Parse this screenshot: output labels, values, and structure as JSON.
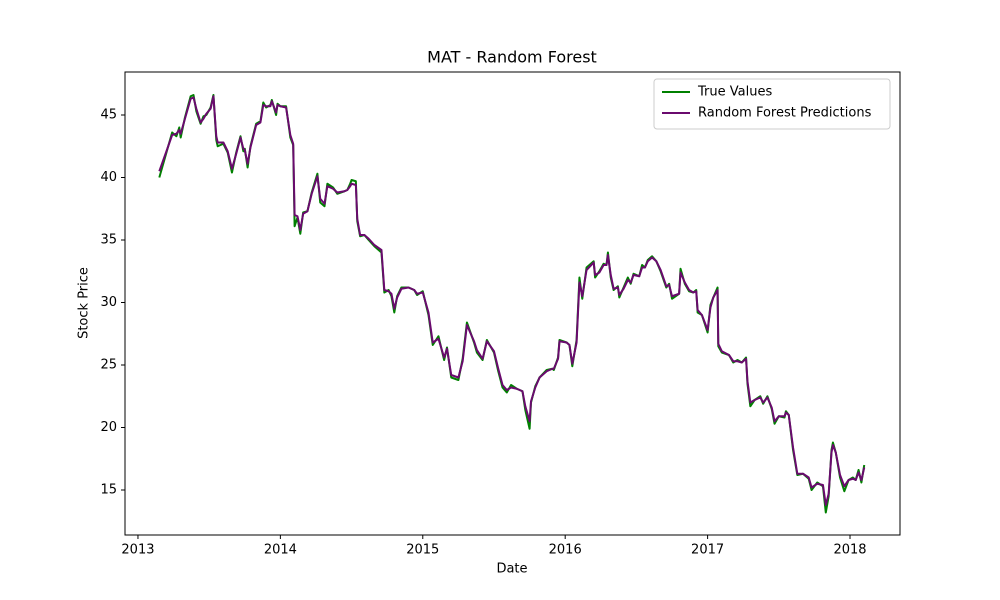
{
  "chart_data": {
    "type": "line",
    "title": "MAT - Random Forest",
    "xlabel": "Date",
    "ylabel": "Stock Price",
    "x": [
      2013.15,
      2013.2,
      2013.24,
      2013.27,
      2013.29,
      2013.3,
      2013.33,
      2013.37,
      2013.39,
      2013.41,
      2013.44,
      2013.46,
      2013.48,
      2013.51,
      2013.53,
      2013.55,
      2013.56,
      2013.6,
      2013.63,
      2013.66,
      2013.69,
      2013.72,
      2013.74,
      2013.75,
      2013.77,
      2013.79,
      2013.83,
      2013.86,
      2013.88,
      2013.9,
      2013.93,
      2013.94,
      2013.97,
      2013.98,
      2014.0,
      2014.04,
      2014.07,
      2014.09,
      2014.1,
      2014.12,
      2014.14,
      2014.16,
      2014.19,
      2014.22,
      2014.26,
      2014.28,
      2014.31,
      2014.33,
      2014.37,
      2014.4,
      2014.45,
      2014.47,
      2014.49,
      2014.5,
      2014.53,
      2014.54,
      2014.56,
      2014.59,
      2014.62,
      2014.66,
      2014.71,
      2014.73,
      2014.76,
      2014.78,
      2014.8,
      2014.82,
      2014.85,
      2014.9,
      2014.94,
      2014.96,
      2015.0,
      2015.04,
      2015.07,
      2015.11,
      2015.15,
      2015.17,
      2015.2,
      2015.25,
      2015.28,
      2015.31,
      2015.36,
      2015.38,
      2015.42,
      2015.45,
      2015.5,
      2015.53,
      2015.56,
      2015.59,
      2015.62,
      2015.66,
      2015.7,
      2015.72,
      2015.75,
      2015.76,
      2015.79,
      2015.82,
      2015.87,
      2015.91,
      2015.92,
      2015.95,
      2015.96,
      2016.01,
      2016.03,
      2016.05,
      2016.08,
      2016.1,
      2016.12,
      2016.15,
      2016.2,
      2016.21,
      2016.24,
      2016.27,
      2016.29,
      2016.3,
      2016.32,
      2016.34,
      2016.37,
      2016.38,
      2016.41,
      2016.44,
      2016.46,
      2016.48,
      2016.52,
      2016.54,
      2016.56,
      2016.58,
      2016.61,
      2016.64,
      2016.67,
      2016.71,
      2016.73,
      2016.75,
      2016.8,
      2016.81,
      2016.84,
      2016.87,
      2016.9,
      2016.92,
      2016.93,
      2016.96,
      2017.0,
      2017.02,
      2017.04,
      2017.07,
      2017.075,
      2017.1,
      2017.15,
      2017.18,
      2017.21,
      2017.24,
      2017.27,
      2017.28,
      2017.3,
      2017.33,
      2017.37,
      2017.39,
      2017.42,
      2017.45,
      2017.47,
      2017.5,
      2017.54,
      2017.55,
      2017.57,
      2017.6,
      2017.63,
      2017.67,
      2017.71,
      2017.73,
      2017.77,
      2017.81,
      2017.83,
      2017.85,
      2017.87,
      2017.88,
      2017.9,
      2017.93,
      2017.96,
      2017.99,
      2018.02,
      2018.04,
      2018.06,
      2018.08,
      2018.1
    ],
    "series": [
      {
        "name": "True Values",
        "color": "green",
        "values": [
          40.0,
          42.0,
          43.6,
          43.3,
          44.0,
          43.2,
          44.8,
          46.5,
          46.6,
          45.3,
          44.3,
          44.9,
          45.0,
          45.6,
          46.6,
          43.0,
          42.5,
          42.7,
          42.0,
          40.4,
          42.0,
          43.3,
          42.1,
          42.3,
          40.8,
          42.5,
          44.3,
          44.5,
          46.0,
          45.6,
          45.8,
          46.2,
          45.0,
          45.9,
          45.7,
          45.7,
          43.2,
          42.6,
          36.1,
          36.8,
          35.5,
          37.2,
          37.3,
          38.8,
          40.3,
          38.0,
          37.7,
          39.5,
          39.2,
          38.7,
          38.9,
          39.0,
          39.5,
          39.8,
          39.7,
          36.5,
          35.3,
          35.4,
          35.0,
          34.5,
          34.0,
          30.8,
          31.0,
          30.5,
          29.2,
          30.5,
          31.2,
          31.2,
          31.0,
          30.6,
          30.9,
          29.0,
          26.6,
          27.3,
          25.4,
          26.4,
          24.0,
          23.8,
          25.5,
          28.4,
          26.8,
          26.0,
          25.4,
          27.0,
          26.0,
          24.5,
          23.2,
          22.8,
          23.4,
          23.1,
          22.9,
          21.4,
          19.9,
          22.0,
          23.3,
          24.0,
          24.6,
          24.7,
          24.6,
          25.6,
          27.0,
          26.8,
          26.6,
          24.9,
          27.0,
          32.0,
          30.3,
          32.8,
          33.3,
          32.0,
          32.5,
          33.1,
          33.0,
          34.0,
          32.0,
          31.0,
          31.3,
          30.4,
          31.2,
          32.0,
          31.5,
          32.3,
          32.1,
          33.0,
          32.8,
          33.4,
          33.7,
          33.3,
          32.5,
          31.2,
          31.5,
          30.3,
          30.7,
          32.7,
          31.5,
          30.9,
          30.8,
          31.0,
          29.2,
          29.0,
          27.6,
          29.8,
          30.4,
          31.2,
          26.5,
          26.0,
          25.8,
          25.2,
          25.4,
          25.2,
          25.6,
          23.5,
          21.7,
          22.2,
          22.5,
          21.9,
          22.5,
          21.5,
          20.3,
          20.9,
          20.8,
          21.3,
          21.0,
          18.2,
          16.2,
          16.3,
          15.9,
          15.0,
          15.6,
          15.3,
          13.2,
          14.5,
          18.2,
          18.8,
          18.0,
          16.0,
          14.9,
          15.8,
          16.0,
          15.8,
          16.6,
          15.6,
          17.0
        ]
      },
      {
        "name": "Random Forest Predictions",
        "color": "#6a0a6e",
        "values": [
          40.5,
          42.1,
          43.4,
          43.5,
          43.8,
          43.5,
          44.7,
          46.3,
          46.4,
          45.5,
          44.4,
          44.7,
          45.1,
          45.5,
          46.5,
          43.3,
          42.8,
          42.8,
          42.1,
          40.7,
          41.9,
          43.2,
          42.3,
          42.2,
          41.1,
          42.4,
          44.2,
          44.4,
          45.8,
          45.7,
          45.7,
          46.1,
          45.2,
          45.8,
          45.7,
          45.6,
          43.4,
          42.7,
          37.0,
          36.9,
          35.8,
          37.1,
          37.3,
          38.7,
          40.1,
          38.3,
          37.9,
          39.3,
          39.1,
          38.8,
          38.9,
          39.0,
          39.3,
          39.5,
          39.4,
          36.7,
          35.4,
          35.4,
          35.1,
          34.6,
          34.2,
          31.0,
          30.9,
          30.7,
          29.5,
          30.4,
          31.1,
          31.2,
          31.0,
          30.7,
          30.8,
          29.2,
          26.8,
          27.1,
          25.6,
          26.3,
          24.2,
          24.0,
          25.3,
          28.2,
          26.9,
          26.2,
          25.5,
          26.9,
          26.1,
          24.7,
          23.4,
          23.0,
          23.2,
          23.1,
          22.9,
          21.7,
          20.5,
          22.1,
          23.2,
          24.0,
          24.5,
          24.7,
          24.7,
          25.5,
          26.9,
          26.8,
          26.6,
          25.1,
          26.8,
          31.6,
          30.5,
          32.6,
          33.2,
          32.2,
          32.4,
          33.0,
          33.0,
          33.8,
          32.2,
          31.1,
          31.2,
          30.6,
          31.1,
          31.8,
          31.6,
          32.2,
          32.1,
          32.8,
          32.8,
          33.3,
          33.6,
          33.3,
          32.6,
          31.3,
          31.4,
          30.5,
          30.7,
          32.4,
          31.6,
          31.0,
          30.8,
          30.9,
          29.4,
          29.0,
          27.8,
          29.6,
          30.4,
          31.0,
          26.7,
          26.1,
          25.8,
          25.3,
          25.3,
          25.2,
          25.5,
          23.7,
          22.0,
          22.2,
          22.4,
          22.0,
          22.4,
          21.6,
          20.5,
          20.9,
          20.9,
          21.2,
          21.0,
          18.4,
          16.3,
          16.3,
          16.0,
          15.2,
          15.5,
          15.4,
          13.8,
          14.7,
          18.0,
          18.6,
          18.0,
          16.2,
          15.3,
          15.8,
          15.9,
          15.8,
          16.4,
          15.8,
          16.8
        ]
      }
    ],
    "xlim": [
      2012.909,
      2018.351
    ],
    "xticks": [
      2013,
      2014,
      2015,
      2016,
      2017,
      2018
    ],
    "ylim": [
      11.4,
      48.44
    ],
    "yticks": [
      15,
      20,
      25,
      30,
      35,
      40,
      45
    ],
    "grid": false,
    "legend": "upper right"
  }
}
